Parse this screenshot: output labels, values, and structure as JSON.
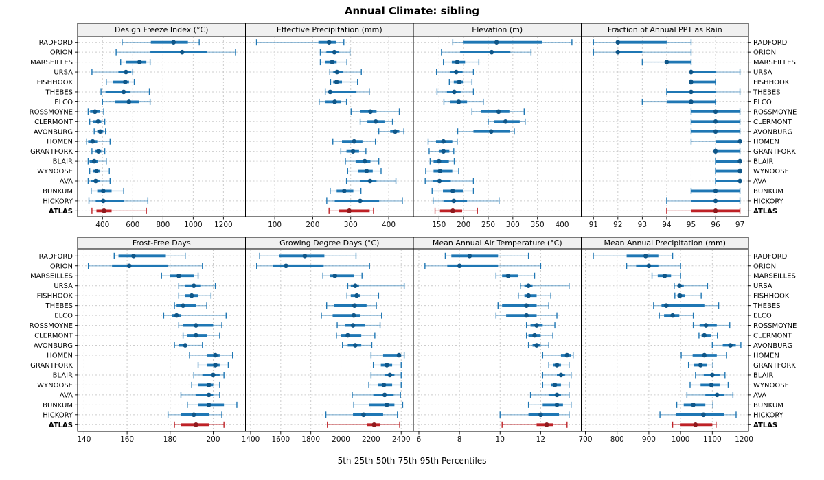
{
  "chart_data": {
    "type": "percentile-whisker-trellis",
    "title": "Annual Climate: sibling",
    "xlabel": "5th-25th-50th-75th-95th Percentiles",
    "percentiles": [
      5,
      25,
      50,
      75,
      95
    ],
    "sites": [
      "RADFORD",
      "ORION",
      "MARSEILLES",
      "URSA",
      "FISHHOOK",
      "THEBES",
      "ELCO",
      "ROSSMOYNE",
      "CLERMONT",
      "AVONBURG",
      "HOMEN",
      "GRANTFORK",
      "BLAIR",
      "WYNOOSE",
      "AVA",
      "BUNKUM",
      "HICKORY",
      "ATLAS"
    ],
    "highlight_site": "ATLAS",
    "colors": {
      "series": "#1F77B4",
      "series_dot": "#0F5688",
      "highlight": "#BE2126",
      "highlight_dot": "#8E1A1E",
      "grid": "#CCCCCC",
      "strip_bg": "#F0F0F0",
      "border": "#000000"
    },
    "layout": {
      "rows": 2,
      "cols": 4,
      "grid": "dashed",
      "site_labels": "both-sides",
      "legend": "none"
    },
    "panels": [
      {
        "title": "Design Freeze Index (°C)",
        "row": 0,
        "col": 0,
        "xlim": [
          235,
          1346
        ],
        "ticks": [
          400,
          600,
          800,
          1000,
          1200
        ],
        "values": [
          [
            530,
            720,
            870,
            965,
            1040
          ],
          [
            490,
            717,
            927,
            1090,
            1280
          ],
          [
            520,
            555,
            645,
            690,
            715
          ],
          [
            330,
            505,
            555,
            590,
            600
          ],
          [
            425,
            470,
            550,
            575,
            610
          ],
          [
            390,
            420,
            540,
            585,
            710
          ],
          [
            400,
            485,
            575,
            640,
            715
          ],
          [
            305,
            318,
            350,
            385,
            408
          ],
          [
            315,
            335,
            370,
            392,
            415
          ],
          [
            345,
            365,
            385,
            405,
            420
          ],
          [
            295,
            305,
            335,
            365,
            450
          ],
          [
            330,
            350,
            373,
            392,
            415
          ],
          [
            305,
            315,
            345,
            370,
            425
          ],
          [
            315,
            335,
            360,
            385,
            445
          ],
          [
            305,
            325,
            355,
            380,
            450
          ],
          [
            325,
            365,
            405,
            460,
            540
          ],
          [
            310,
            355,
            405,
            540,
            700
          ],
          [
            330,
            360,
            410,
            460,
            690
          ]
        ]
      },
      {
        "title": "Effective Precipitation (mm)",
        "row": 0,
        "col": 1,
        "xlim": [
          23,
          465
        ],
        "ticks": [
          100,
          200,
          300,
          400
        ],
        "values": [
          [
            52,
            215,
            243,
            262,
            282
          ],
          [
            220,
            236,
            257,
            269,
            298
          ],
          [
            220,
            233,
            251,
            263,
            290
          ],
          [
            245,
            254,
            264,
            279,
            328
          ],
          [
            247,
            254,
            263,
            277,
            318
          ],
          [
            233,
            239,
            246,
            315,
            349
          ],
          [
            217,
            233,
            258,
            274,
            289
          ],
          [
            301,
            325,
            352,
            368,
            428
          ],
          [
            325,
            344,
            366,
            389,
            410
          ],
          [
            374,
            404,
            417,
            428,
            440
          ],
          [
            253,
            277,
            309,
            331,
            365
          ],
          [
            274,
            289,
            306,
            322,
            340
          ],
          [
            286,
            313,
            337,
            352,
            374
          ],
          [
            292,
            319,
            342,
            358,
            380
          ],
          [
            289,
            325,
            351,
            368,
            419
          ],
          [
            246,
            263,
            283,
            307,
            327
          ],
          [
            237,
            258,
            325,
            375,
            436
          ],
          [
            243,
            269,
            296,
            350,
            360
          ]
        ]
      },
      {
        "title": "Elevation (m)",
        "row": 0,
        "col": 2,
        "xlim": [
          98,
          439
        ],
        "ticks": [
          150,
          200,
          250,
          300,
          350,
          400
        ],
        "values": [
          [
            178,
            200,
            267,
            360,
            420
          ],
          [
            155,
            193,
            257,
            295,
            337
          ],
          [
            159,
            176,
            187,
            203,
            231
          ],
          [
            145,
            173,
            185,
            198,
            220
          ],
          [
            171,
            180,
            191,
            200,
            217
          ],
          [
            146,
            166,
            181,
            194,
            220
          ],
          [
            160,
            173,
            190,
            207,
            240
          ],
          [
            217,
            236,
            271,
            293,
            323
          ],
          [
            250,
            262,
            285,
            314,
            325
          ],
          [
            188,
            220,
            256,
            294,
            303
          ],
          [
            128,
            144,
            159,
            177,
            187
          ],
          [
            130,
            151,
            159,
            171,
            180
          ],
          [
            132,
            139,
            150,
            170,
            181
          ],
          [
            123,
            139,
            152,
            177,
            190
          ],
          [
            122,
            138,
            151,
            174,
            220
          ],
          [
            136,
            158,
            178,
            199,
            220
          ],
          [
            138,
            159,
            180,
            207,
            272
          ],
          [
            142,
            152,
            178,
            197,
            228
          ]
        ]
      },
      {
        "title": "Fraction of Annual PPT as Rain",
        "row": 0,
        "col": 3,
        "xlim": [
          90.5,
          97.35
        ],
        "ticks": [
          91,
          92,
          93,
          94,
          95,
          96,
          97
        ],
        "values": [
          [
            91,
            92,
            92,
            94,
            95
          ],
          [
            91,
            92,
            92,
            93,
            95
          ],
          [
            93,
            94,
            94,
            95,
            95
          ],
          [
            95,
            95,
            95,
            96,
            97
          ],
          [
            95,
            95,
            95,
            96,
            96
          ],
          [
            94,
            94,
            95,
            96,
            97
          ],
          [
            93,
            94,
            95,
            96,
            96
          ],
          [
            95,
            95,
            96,
            97,
            97
          ],
          [
            95,
            95,
            96,
            97,
            97
          ],
          [
            95,
            95,
            96,
            97,
            97
          ],
          [
            95,
            96,
            97,
            97,
            97
          ],
          [
            96,
            96,
            96,
            97,
            97
          ],
          [
            96,
            96,
            97,
            97,
            97
          ],
          [
            96,
            96,
            97,
            97,
            97
          ],
          [
            96,
            96,
            97,
            97,
            97
          ],
          [
            95,
            95,
            96,
            97,
            97
          ],
          [
            94,
            95,
            96,
            97,
            97
          ],
          [
            94,
            95,
            96,
            97,
            97
          ]
        ]
      },
      {
        "title": "Frost-Free Days",
        "row": 1,
        "col": 0,
        "xlim": [
          137,
          215
        ],
        "ticks": [
          140,
          160,
          180,
          200
        ],
        "values": [
          [
            154,
            156,
            163,
            178,
            187
          ],
          [
            142,
            153,
            161,
            179,
            195
          ],
          [
            176,
            180,
            184,
            191,
            193
          ],
          [
            184,
            187,
            191,
            194,
            201
          ],
          [
            184,
            187,
            190,
            193,
            199
          ],
          [
            182,
            183,
            186,
            192,
            197
          ],
          [
            177,
            181,
            183,
            185,
            206
          ],
          [
            184,
            186,
            192,
            200,
            204
          ],
          [
            186,
            188,
            192,
            197,
            203
          ],
          [
            182,
            184,
            187,
            188,
            195
          ],
          [
            189,
            197,
            201,
            203,
            209
          ],
          [
            193,
            197,
            201,
            203,
            207
          ],
          [
            191,
            195,
            200,
            203,
            205
          ],
          [
            190,
            193,
            198,
            200,
            203
          ],
          [
            185,
            192,
            198,
            200,
            203
          ],
          [
            188,
            193,
            198,
            205,
            211
          ],
          [
            179,
            185,
            191,
            198,
            204
          ],
          [
            182,
            185,
            192,
            198,
            205
          ]
        ]
      },
      {
        "title": "Growing Degree Days (°C)",
        "row": 1,
        "col": 1,
        "xlim": [
          1366,
          2481
        ],
        "ticks": [
          1400,
          1600,
          1800,
          2000,
          2200,
          2400
        ],
        "values": [
          [
            1460,
            1590,
            1760,
            1890,
            2100
          ],
          [
            1440,
            1550,
            1635,
            1885,
            2190
          ],
          [
            1880,
            1925,
            1960,
            2085,
            2140
          ],
          [
            2045,
            2065,
            2095,
            2120,
            2420
          ],
          [
            2040,
            2065,
            2105,
            2130,
            2250
          ],
          [
            1905,
            1955,
            2090,
            2170,
            2235
          ],
          [
            1870,
            1945,
            2085,
            2130,
            2270
          ],
          [
            1975,
            2025,
            2080,
            2160,
            2260
          ],
          [
            1970,
            2000,
            2045,
            2135,
            2225
          ],
          [
            2010,
            2045,
            2095,
            2135,
            2205
          ],
          [
            2200,
            2280,
            2385,
            2400,
            2420
          ],
          [
            2215,
            2265,
            2305,
            2340,
            2400
          ],
          [
            2200,
            2290,
            2325,
            2355,
            2400
          ],
          [
            2185,
            2245,
            2285,
            2340,
            2400
          ],
          [
            2075,
            2215,
            2290,
            2350,
            2395
          ],
          [
            2085,
            2185,
            2305,
            2355,
            2410
          ],
          [
            1900,
            2080,
            2150,
            2280,
            2375
          ],
          [
            1910,
            2175,
            2220,
            2260,
            2390
          ]
        ]
      },
      {
        "title": "Mean Annual Air Temperature (°C)",
        "row": 1,
        "col": 2,
        "xlim": [
          5.73,
          14.0
        ],
        "ticks": [
          6,
          8,
          10,
          12
        ],
        "values": [
          [
            7.3,
            7.6,
            8.5,
            9.9,
            11.4
          ],
          [
            6.3,
            7.4,
            8.0,
            9.9,
            12.0
          ],
          [
            9.8,
            10.1,
            10.4,
            10.9,
            11.7
          ],
          [
            11.0,
            11.2,
            11.4,
            11.6,
            13.4
          ],
          [
            10.9,
            11.2,
            11.4,
            11.8,
            12.5
          ],
          [
            9.9,
            10.1,
            11.3,
            11.8,
            12.4
          ],
          [
            9.8,
            10.3,
            11.3,
            11.8,
            12.8
          ],
          [
            11.3,
            11.5,
            11.8,
            12.1,
            12.7
          ],
          [
            11.3,
            11.4,
            11.7,
            12.0,
            12.6
          ],
          [
            11.4,
            11.6,
            11.8,
            12.0,
            12.4
          ],
          [
            12.1,
            13.0,
            13.3,
            13.5,
            13.6
          ],
          [
            12.4,
            12.6,
            12.8,
            13.0,
            13.4
          ],
          [
            12.1,
            12.8,
            13.0,
            13.2,
            13.5
          ],
          [
            12.1,
            12.5,
            12.7,
            13.0,
            13.4
          ],
          [
            11.5,
            12.4,
            12.8,
            13.0,
            13.4
          ],
          [
            11.4,
            12.1,
            12.8,
            13.1,
            13.5
          ],
          [
            10.0,
            11.4,
            12.0,
            12.9,
            13.4
          ],
          [
            10.1,
            11.8,
            12.3,
            12.6,
            13.3
          ]
        ]
      },
      {
        "title": "Mean Annual Precipitation (mm)",
        "row": 1,
        "col": 3,
        "xlim": [
          687,
          1214
        ],
        "ticks": [
          700,
          800,
          900,
          1000,
          1100,
          1200
        ],
        "values": [
          [
            725,
            830,
            890,
            930,
            975
          ],
          [
            830,
            860,
            900,
            930,
            1000
          ],
          [
            910,
            928,
            950,
            970,
            1000
          ],
          [
            980,
            990,
            997,
            1010,
            1085
          ],
          [
            982,
            990,
            998,
            1013,
            1065
          ],
          [
            915,
            940,
            955,
            1075,
            1120
          ],
          [
            933,
            948,
            975,
            996,
            1040
          ],
          [
            1040,
            1060,
            1080,
            1114,
            1155
          ],
          [
            1058,
            1066,
            1075,
            1097,
            1116
          ],
          [
            1100,
            1133,
            1157,
            1174,
            1190
          ],
          [
            1002,
            1038,
            1075,
            1114,
            1145
          ],
          [
            1025,
            1042,
            1063,
            1083,
            1102
          ],
          [
            1047,
            1073,
            1100,
            1123,
            1140
          ],
          [
            1030,
            1063,
            1097,
            1123,
            1150
          ],
          [
            1020,
            1078,
            1115,
            1138,
            1165
          ],
          [
            988,
            1010,
            1040,
            1078,
            1102
          ],
          [
            935,
            985,
            1072,
            1138,
            1175
          ],
          [
            975,
            1000,
            1047,
            1100,
            1112
          ]
        ]
      }
    ]
  }
}
